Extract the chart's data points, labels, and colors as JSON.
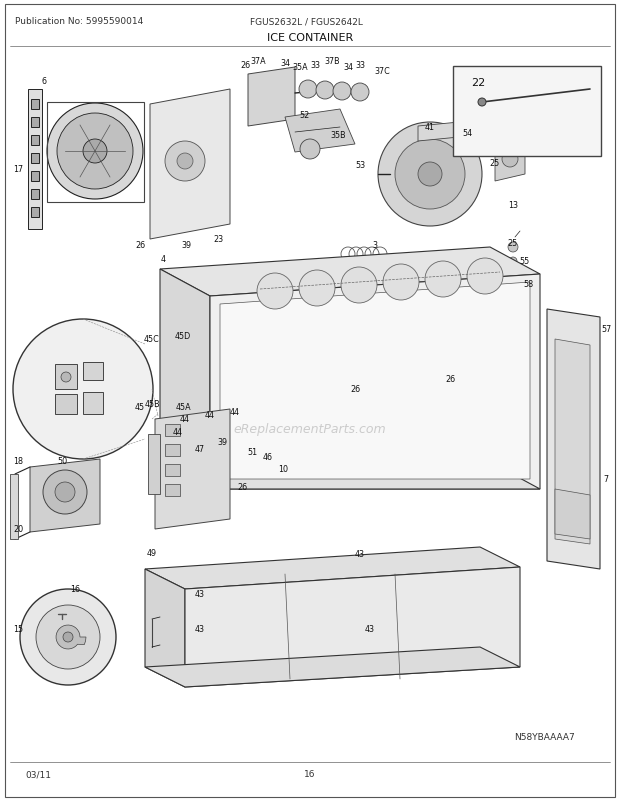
{
  "title": "ICE CONTAINER",
  "pub_no": "Publication No: 5995590014",
  "model": "FGUS2632L / FGUS2642L",
  "part_id": "N58YBAAAA7",
  "date": "03/11",
  "page": "16",
  "bg_color": "#ffffff",
  "fig_width": 6.2,
  "fig_height": 8.03,
  "dpi": 100,
  "lc": "#222222",
  "lw": 0.7
}
